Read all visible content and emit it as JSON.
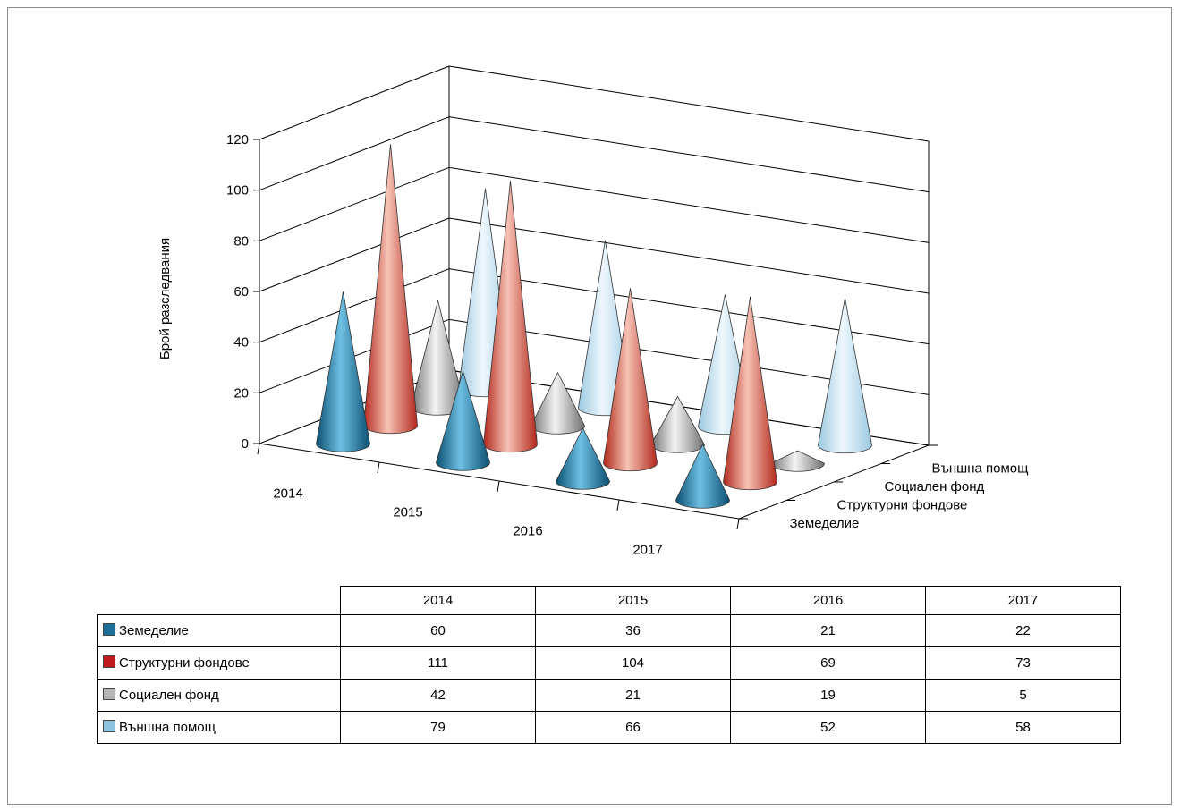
{
  "chart_data": {
    "type": "bar",
    "subtype": "3d-cone",
    "title": "",
    "ylabel": "Брой разследвания",
    "ylim": [
      0,
      120
    ],
    "yticks": [
      0,
      20,
      40,
      60,
      80,
      100,
      120
    ],
    "categories": [
      "2014",
      "2015",
      "2016",
      "2017"
    ],
    "series": [
      {
        "name": "Земеделие",
        "values": [
          60,
          36,
          21,
          22
        ],
        "color": "#1e7aa6"
      },
      {
        "name": "Структурни фондове",
        "values": [
          111,
          104,
          69,
          73
        ],
        "color": "#c0392b"
      },
      {
        "name": "Социален фонд",
        "values": [
          42,
          21,
          19,
          5
        ],
        "color": "#9a9a9a"
      },
      {
        "name": "Външна помощ",
        "values": [
          79,
          66,
          52,
          58
        ],
        "color": "#8cc3e0"
      }
    ],
    "grid": true,
    "legend": "data-table below chart"
  }
}
